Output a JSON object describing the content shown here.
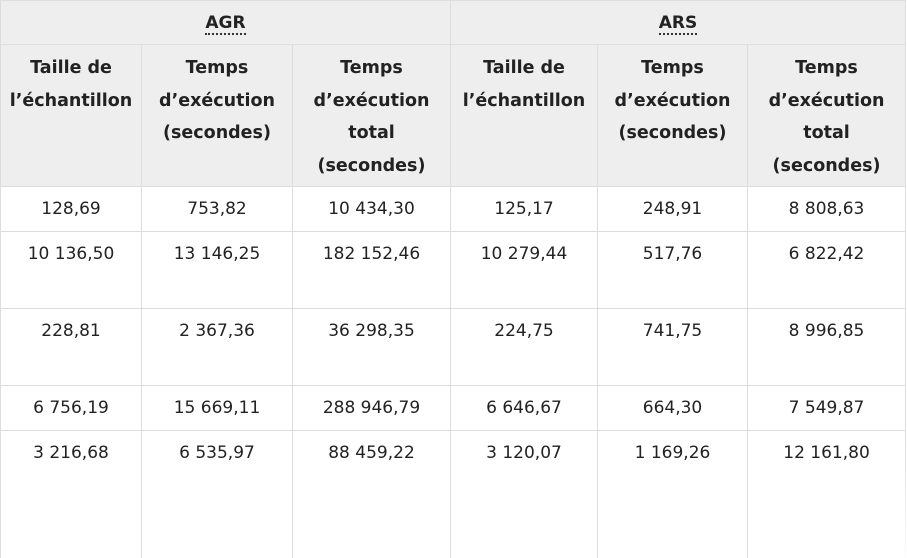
{
  "table": {
    "groups": [
      "AGR",
      "ARS"
    ],
    "columns": [
      [
        "Taille de",
        "l’échantillon"
      ],
      [
        "Temps",
        "d’exécution",
        "(secondes)"
      ],
      [
        "Temps",
        "d’exécution",
        "total",
        "(secondes)"
      ],
      [
        "Taille de",
        "l’échantillon"
      ],
      [
        "Temps",
        "d’exécution",
        "(secondes)"
      ],
      [
        "Temps",
        "d’exécution",
        "total",
        "(secondes)"
      ]
    ],
    "rows": [
      [
        "128,69",
        "753,82",
        "10 434,30",
        "125,17",
        "248,91",
        "8 808,63"
      ],
      [
        "10 136,50",
        "13 146,25",
        "182 152,46",
        "10 279,44",
        "517,76",
        "6 822,42"
      ],
      [
        "228,81",
        "2 367,36",
        "36 298,35",
        "224,75",
        "741,75",
        "8 996,85"
      ],
      [
        "6 756,19",
        "15 669,11",
        "288 946,79",
        "6 646,67",
        "664,30",
        "7 549,87"
      ],
      [
        "3 216,68",
        "6 535,97",
        "88 459,22",
        "3 120,07",
        "1 169,26",
        "12 161,80"
      ]
    ]
  }
}
